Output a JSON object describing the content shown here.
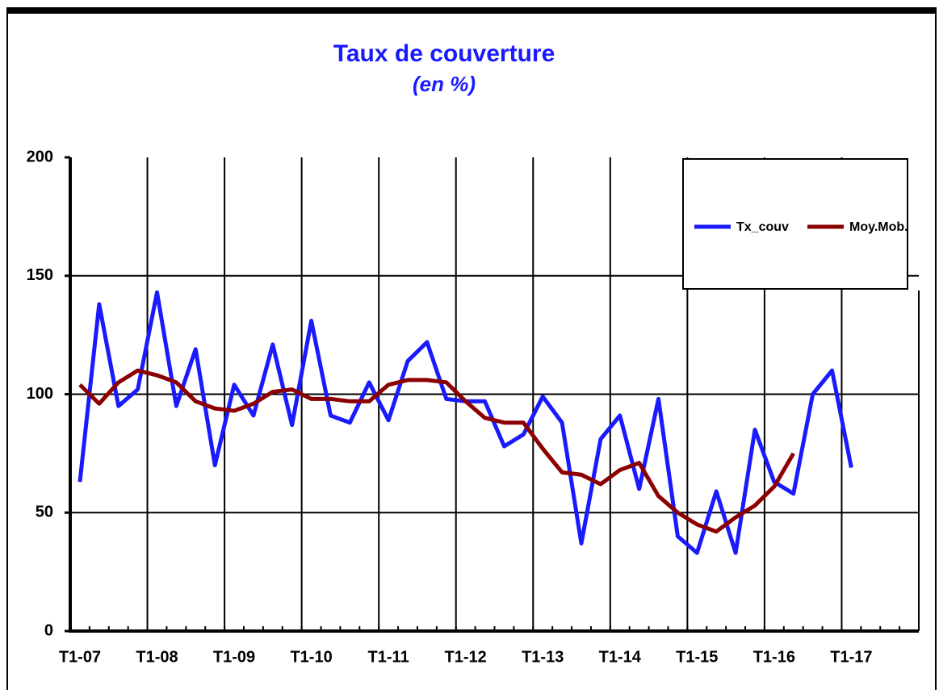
{
  "chart_data": {
    "type": "line",
    "title": "Taux de couverture",
    "subtitle": "(en %)",
    "categories": [
      "T1-07",
      null,
      null,
      null,
      "T1-08",
      null,
      null,
      null,
      "T1-09",
      null,
      null,
      null,
      "T1-10",
      null,
      null,
      null,
      "T1-11",
      null,
      null,
      null,
      "T1-12",
      null,
      null,
      null,
      "T1-13",
      null,
      null,
      null,
      "T1-14",
      null,
      null,
      null,
      "T1-15",
      null,
      null,
      null,
      "T1-16",
      null,
      null,
      null,
      "T1-17",
      null,
      null,
      null
    ],
    "series": [
      {
        "name": "Tx_couv",
        "color": "#1a1aff",
        "values": [
          63,
          138,
          95,
          102,
          143,
          95,
          119,
          70,
          104,
          91,
          121,
          87,
          131,
          91,
          88,
          105,
          89,
          114,
          122,
          98,
          97,
          97,
          78,
          83,
          99,
          88,
          37,
          81,
          91,
          60,
          98,
          40,
          33,
          59,
          33,
          85,
          63,
          58,
          100,
          110,
          69,
          null,
          null,
          null
        ]
      },
      {
        "name": "Moy.Mob.",
        "color": "#8b0000",
        "values": [
          104,
          96,
          105,
          110,
          108,
          105,
          97,
          94,
          93,
          96,
          101,
          102,
          98,
          98,
          97,
          97,
          104,
          106,
          106,
          105,
          97,
          90,
          88,
          88,
          77,
          67,
          66,
          62,
          68,
          71,
          57,
          50,
          45,
          42,
          48,
          53,
          61,
          75,
          null,
          null,
          null,
          null,
          null,
          null
        ]
      }
    ],
    "ylim": [
      0,
      200
    ],
    "yticks": [
      0,
      50,
      100,
      150,
      200
    ],
    "grid": true,
    "legend": "top-right"
  }
}
